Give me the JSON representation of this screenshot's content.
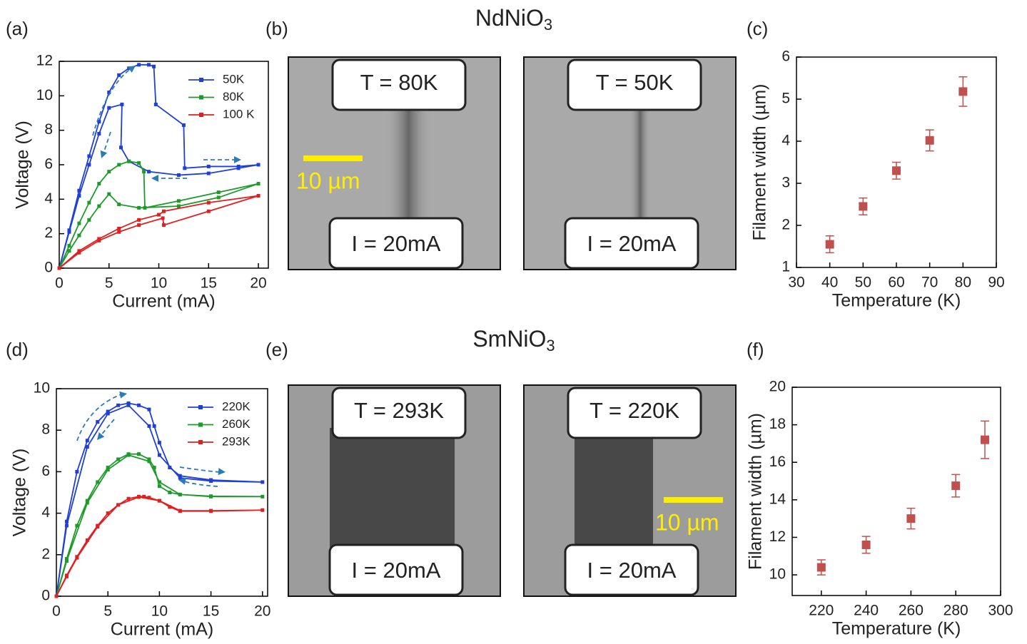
{
  "chart_data": [
    {
      "type": "line",
      "label": "(a)",
      "xlabel": "Current (mA)",
      "ylabel": "Voltage (V)",
      "xlim": [
        0,
        21
      ],
      "xticks": [
        0,
        5,
        10,
        15,
        20
      ],
      "ylim": [
        0,
        12
      ],
      "yticks": [
        0,
        2,
        4,
        6,
        8,
        10,
        12
      ],
      "series": [
        {
          "name": "50K",
          "color": "#1f3fd6",
          "x": [
            0,
            1,
            2,
            3,
            4,
            5,
            6,
            7,
            8,
            9,
            9.5,
            9.7,
            12.5,
            12.6,
            15,
            18,
            20,
            18,
            15,
            12,
            9,
            7,
            6.2,
            6.3,
            5,
            4,
            3,
            2,
            1,
            0
          ],
          "values": [
            0,
            2.2,
            4.5,
            6.5,
            8.5,
            10.2,
            11.2,
            11.6,
            11.8,
            11.8,
            11.7,
            9.5,
            8.3,
            5.8,
            5.9,
            5.9,
            6.0,
            5.8,
            5.5,
            5.4,
            5.6,
            6.2,
            7.0,
            9.5,
            9.3,
            7.8,
            6.0,
            4.2,
            2.1,
            0
          ]
        },
        {
          "name": "80K",
          "color": "#1e9a2b",
          "x": [
            0,
            1,
            2,
            3,
            4,
            5,
            6,
            7,
            8,
            8.5,
            8.6,
            12,
            16,
            20,
            16,
            12,
            8,
            6,
            5,
            4,
            3,
            2,
            1,
            0
          ],
          "values": [
            0,
            1.3,
            2.6,
            3.8,
            4.9,
            5.6,
            6.0,
            6.2,
            6.1,
            5.6,
            3.5,
            3.9,
            4.4,
            4.9,
            4.1,
            3.6,
            3.5,
            3.7,
            4.3,
            3.6,
            2.8,
            1.9,
            1.0,
            0
          ]
        },
        {
          "name": "100 K",
          "color": "#e02020",
          "x": [
            0,
            2,
            4,
            6,
            8,
            10,
            10.5,
            15,
            20,
            15,
            10.5,
            10.4,
            8,
            6,
            4,
            2,
            0
          ],
          "values": [
            0,
            1.0,
            1.7,
            2.3,
            2.8,
            3.1,
            3.3,
            3.8,
            4.2,
            3.3,
            2.5,
            2.9,
            2.5,
            2.1,
            1.6,
            0.9,
            0
          ]
        }
      ]
    },
    {
      "type": "scatter",
      "label": "(c)",
      "xlabel": "Temperature (K)",
      "ylabel": "Filament width (µm)",
      "color": "#c0504d",
      "xlim": [
        30,
        90
      ],
      "xticks": [
        30,
        40,
        50,
        60,
        70,
        80,
        90
      ],
      "ylim": [
        1,
        6
      ],
      "yticks": [
        1,
        2,
        3,
        4,
        5,
        6
      ],
      "x": [
        40,
        50,
        60,
        70,
        80
      ],
      "values": [
        1.55,
        2.45,
        3.3,
        4.02,
        5.18
      ],
      "errors": [
        0.2,
        0.2,
        0.2,
        0.25,
        0.35
      ]
    },
    {
      "type": "line",
      "label": "(d)",
      "xlabel": "Current (mA)",
      "ylabel": "Voltage (V)",
      "xlim": [
        0,
        20.5
      ],
      "xticks": [
        0,
        5,
        10,
        15,
        20
      ],
      "ylim": [
        0,
        10
      ],
      "yticks": [
        0,
        2,
        4,
        6,
        8,
        10
      ],
      "series": [
        {
          "name": "220K",
          "color": "#1f3fd6",
          "x": [
            0,
            1,
            2,
            3,
            4,
            5,
            6,
            7,
            8,
            9,
            9.5,
            10,
            11,
            12,
            15,
            20,
            15,
            12,
            10,
            9,
            7,
            5,
            3,
            1,
            0
          ],
          "values": [
            0,
            3.6,
            6.0,
            7.5,
            8.4,
            8.9,
            9.2,
            9.3,
            9.2,
            9.0,
            8.2,
            7.4,
            6.2,
            5.8,
            5.6,
            5.5,
            5.55,
            5.7,
            6.8,
            8.2,
            9.2,
            8.8,
            7.2,
            3.4,
            0
          ]
        },
        {
          "name": "260K",
          "color": "#1e9a2b",
          "x": [
            0,
            1,
            2,
            3,
            4,
            5,
            6,
            7,
            8,
            9,
            9.5,
            10,
            11,
            12,
            15,
            20,
            15,
            12,
            10,
            9,
            7,
            5,
            3,
            1,
            0
          ],
          "values": [
            0,
            1.8,
            3.4,
            4.6,
            5.5,
            6.2,
            6.6,
            6.85,
            6.85,
            6.6,
            6.2,
            5.3,
            5.0,
            4.9,
            4.8,
            4.8,
            4.82,
            4.9,
            5.5,
            6.5,
            6.8,
            6.1,
            4.5,
            1.7,
            0
          ]
        },
        {
          "name": "293K",
          "color": "#e02020",
          "x": [
            0,
            1,
            2,
            3,
            4,
            5,
            6,
            7,
            8,
            8.5,
            9,
            10,
            11,
            12,
            15,
            20,
            15,
            12,
            10,
            8,
            6,
            4,
            2,
            1,
            0
          ],
          "values": [
            0,
            1.0,
            1.9,
            2.7,
            3.4,
            4.0,
            4.4,
            4.7,
            4.8,
            4.8,
            4.75,
            4.6,
            4.3,
            4.1,
            4.1,
            4.15,
            4.12,
            4.12,
            4.6,
            4.78,
            4.4,
            3.35,
            1.85,
            0.95,
            0
          ]
        }
      ]
    },
    {
      "type": "scatter",
      "label": "(f)",
      "xlabel": "Temperature (K)",
      "ylabel": "Filament width (µm)",
      "color": "#c0504d",
      "xlim": [
        207,
        300
      ],
      "xticks": [
        220,
        240,
        260,
        280,
        300
      ],
      "ylim": [
        8.9,
        20
      ],
      "yticks": [
        10,
        12,
        14,
        16,
        18,
        20
      ],
      "x": [
        220,
        240,
        260,
        280,
        293
      ],
      "values": [
        10.4,
        11.6,
        13.0,
        14.75,
        17.2
      ],
      "errors": [
        0.4,
        0.45,
        0.55,
        0.6,
        1.0
      ]
    }
  ],
  "images": [
    {
      "label": "(b)",
      "title": "NdNiO3",
      "panels": [
        {
          "temperature": "T = 80K",
          "current": "I = 20mA",
          "scale_bar": "10 µm"
        },
        {
          "temperature": "T = 50K",
          "current": "I = 20mA"
        }
      ]
    },
    {
      "label": "(e)",
      "title": "SmNiO3",
      "panels": [
        {
          "temperature": "T = 293K",
          "current": "I = 20mA"
        },
        {
          "temperature": "T = 220K",
          "current": "I = 20mA",
          "scale_bar": "10 µm"
        }
      ]
    }
  ]
}
